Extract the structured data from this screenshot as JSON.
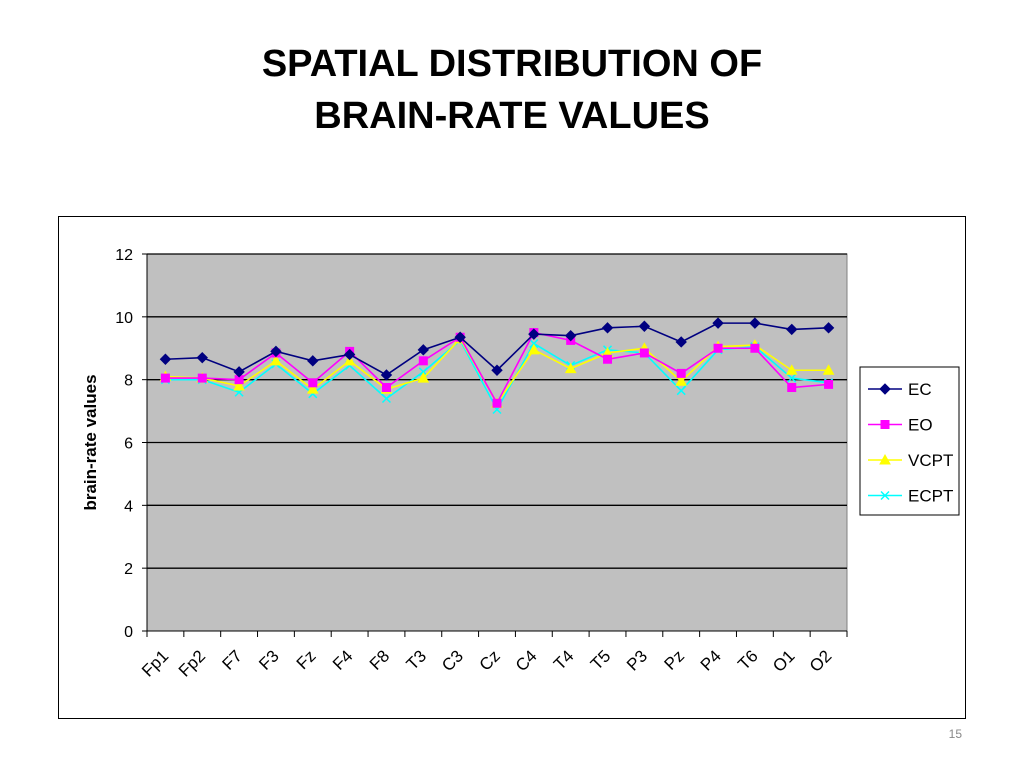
{
  "slide": {
    "title_line1": "SPATIAL DISTRIBUTION OF",
    "title_line2": "BRAIN-RATE VALUES",
    "page_number": "15"
  },
  "chart_data": {
    "type": "line",
    "ylabel": "brain-rate values",
    "ylim": [
      0,
      12
    ],
    "yticks": [
      0,
      2,
      4,
      6,
      8,
      10,
      12
    ],
    "grid": true,
    "plot_background": "#c0c0c0",
    "legend_position": "right",
    "categories": [
      "Fp1",
      "Fp2",
      "F7",
      "F3",
      "Fz",
      "F4",
      "F8",
      "T3",
      "C3",
      "Cz",
      "C4",
      "T4",
      "T5",
      "P3",
      "Pz",
      "P4",
      "T6",
      "O1",
      "O2"
    ],
    "series": [
      {
        "name": "EC",
        "color": "#000080",
        "marker": "diamond",
        "values": [
          8.65,
          8.7,
          8.25,
          8.9,
          8.6,
          8.8,
          8.15,
          8.95,
          9.35,
          8.3,
          9.45,
          9.4,
          9.65,
          9.7,
          9.2,
          9.8,
          9.8,
          9.6,
          9.65
        ]
      },
      {
        "name": "EO",
        "color": "#ff00ff",
        "marker": "square",
        "values": [
          8.05,
          8.05,
          8.0,
          8.85,
          7.9,
          8.9,
          7.75,
          8.6,
          9.35,
          7.25,
          9.5,
          9.25,
          8.65,
          8.85,
          8.2,
          9.0,
          9.0,
          7.75,
          7.85
        ]
      },
      {
        "name": "VCPT",
        "color": "#ffff00",
        "marker": "triangle",
        "values": [
          8.1,
          8.05,
          7.8,
          8.6,
          7.7,
          8.6,
          7.7,
          8.05,
          9.3,
          7.25,
          8.95,
          8.35,
          8.85,
          9.0,
          7.95,
          9.05,
          9.1,
          8.3,
          8.3
        ]
      },
      {
        "name": "ECPT",
        "color": "#00ffff",
        "marker": "x",
        "values": [
          8.0,
          8.0,
          7.6,
          8.5,
          7.55,
          8.45,
          7.4,
          8.25,
          9.25,
          7.05,
          9.15,
          8.45,
          8.95,
          8.85,
          7.65,
          8.95,
          9.05,
          8.05,
          7.9
        ]
      }
    ]
  }
}
